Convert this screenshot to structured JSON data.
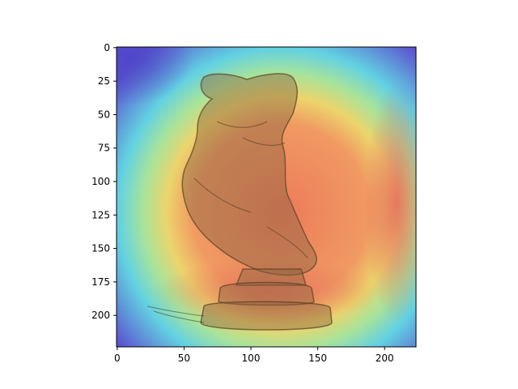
{
  "chart_data": {
    "type": "heatmap",
    "description_role": "imshow of an image (sculpture sketch) overlaid with a jet-colormap saliency heatmap",
    "title": "",
    "xlabel": "",
    "ylabel": "",
    "xlim": [
      -0.5,
      223.5
    ],
    "ylim": [
      223.5,
      -0.5
    ],
    "x_ticks": [
      0,
      50,
      100,
      150,
      200
    ],
    "x_tick_labels": [
      "0",
      "50",
      "100",
      "150",
      "200"
    ],
    "y_ticks": [
      0,
      25,
      50,
      75,
      100,
      125,
      150,
      175,
      200
    ],
    "y_tick_labels": [
      "0",
      "25",
      "50",
      "75",
      "100",
      "125",
      "150",
      "175",
      "200"
    ],
    "grid": false,
    "legend": "none",
    "colormap": "jet",
    "heat_hotspots": [
      {
        "x": 112,
        "y": 150,
        "intensity": 0.9
      },
      {
        "x": 205,
        "y": 110,
        "intensity": 0.85
      },
      {
        "x": 100,
        "y": 120,
        "intensity": 0.8
      }
    ],
    "colors": {
      "low": "#5a4fd0",
      "cool": "#5fd4e6",
      "mid": "#e6e870",
      "warm": "#f0a060",
      "hot": "#e8705a",
      "sculpture": "#7a5a3a"
    }
  }
}
